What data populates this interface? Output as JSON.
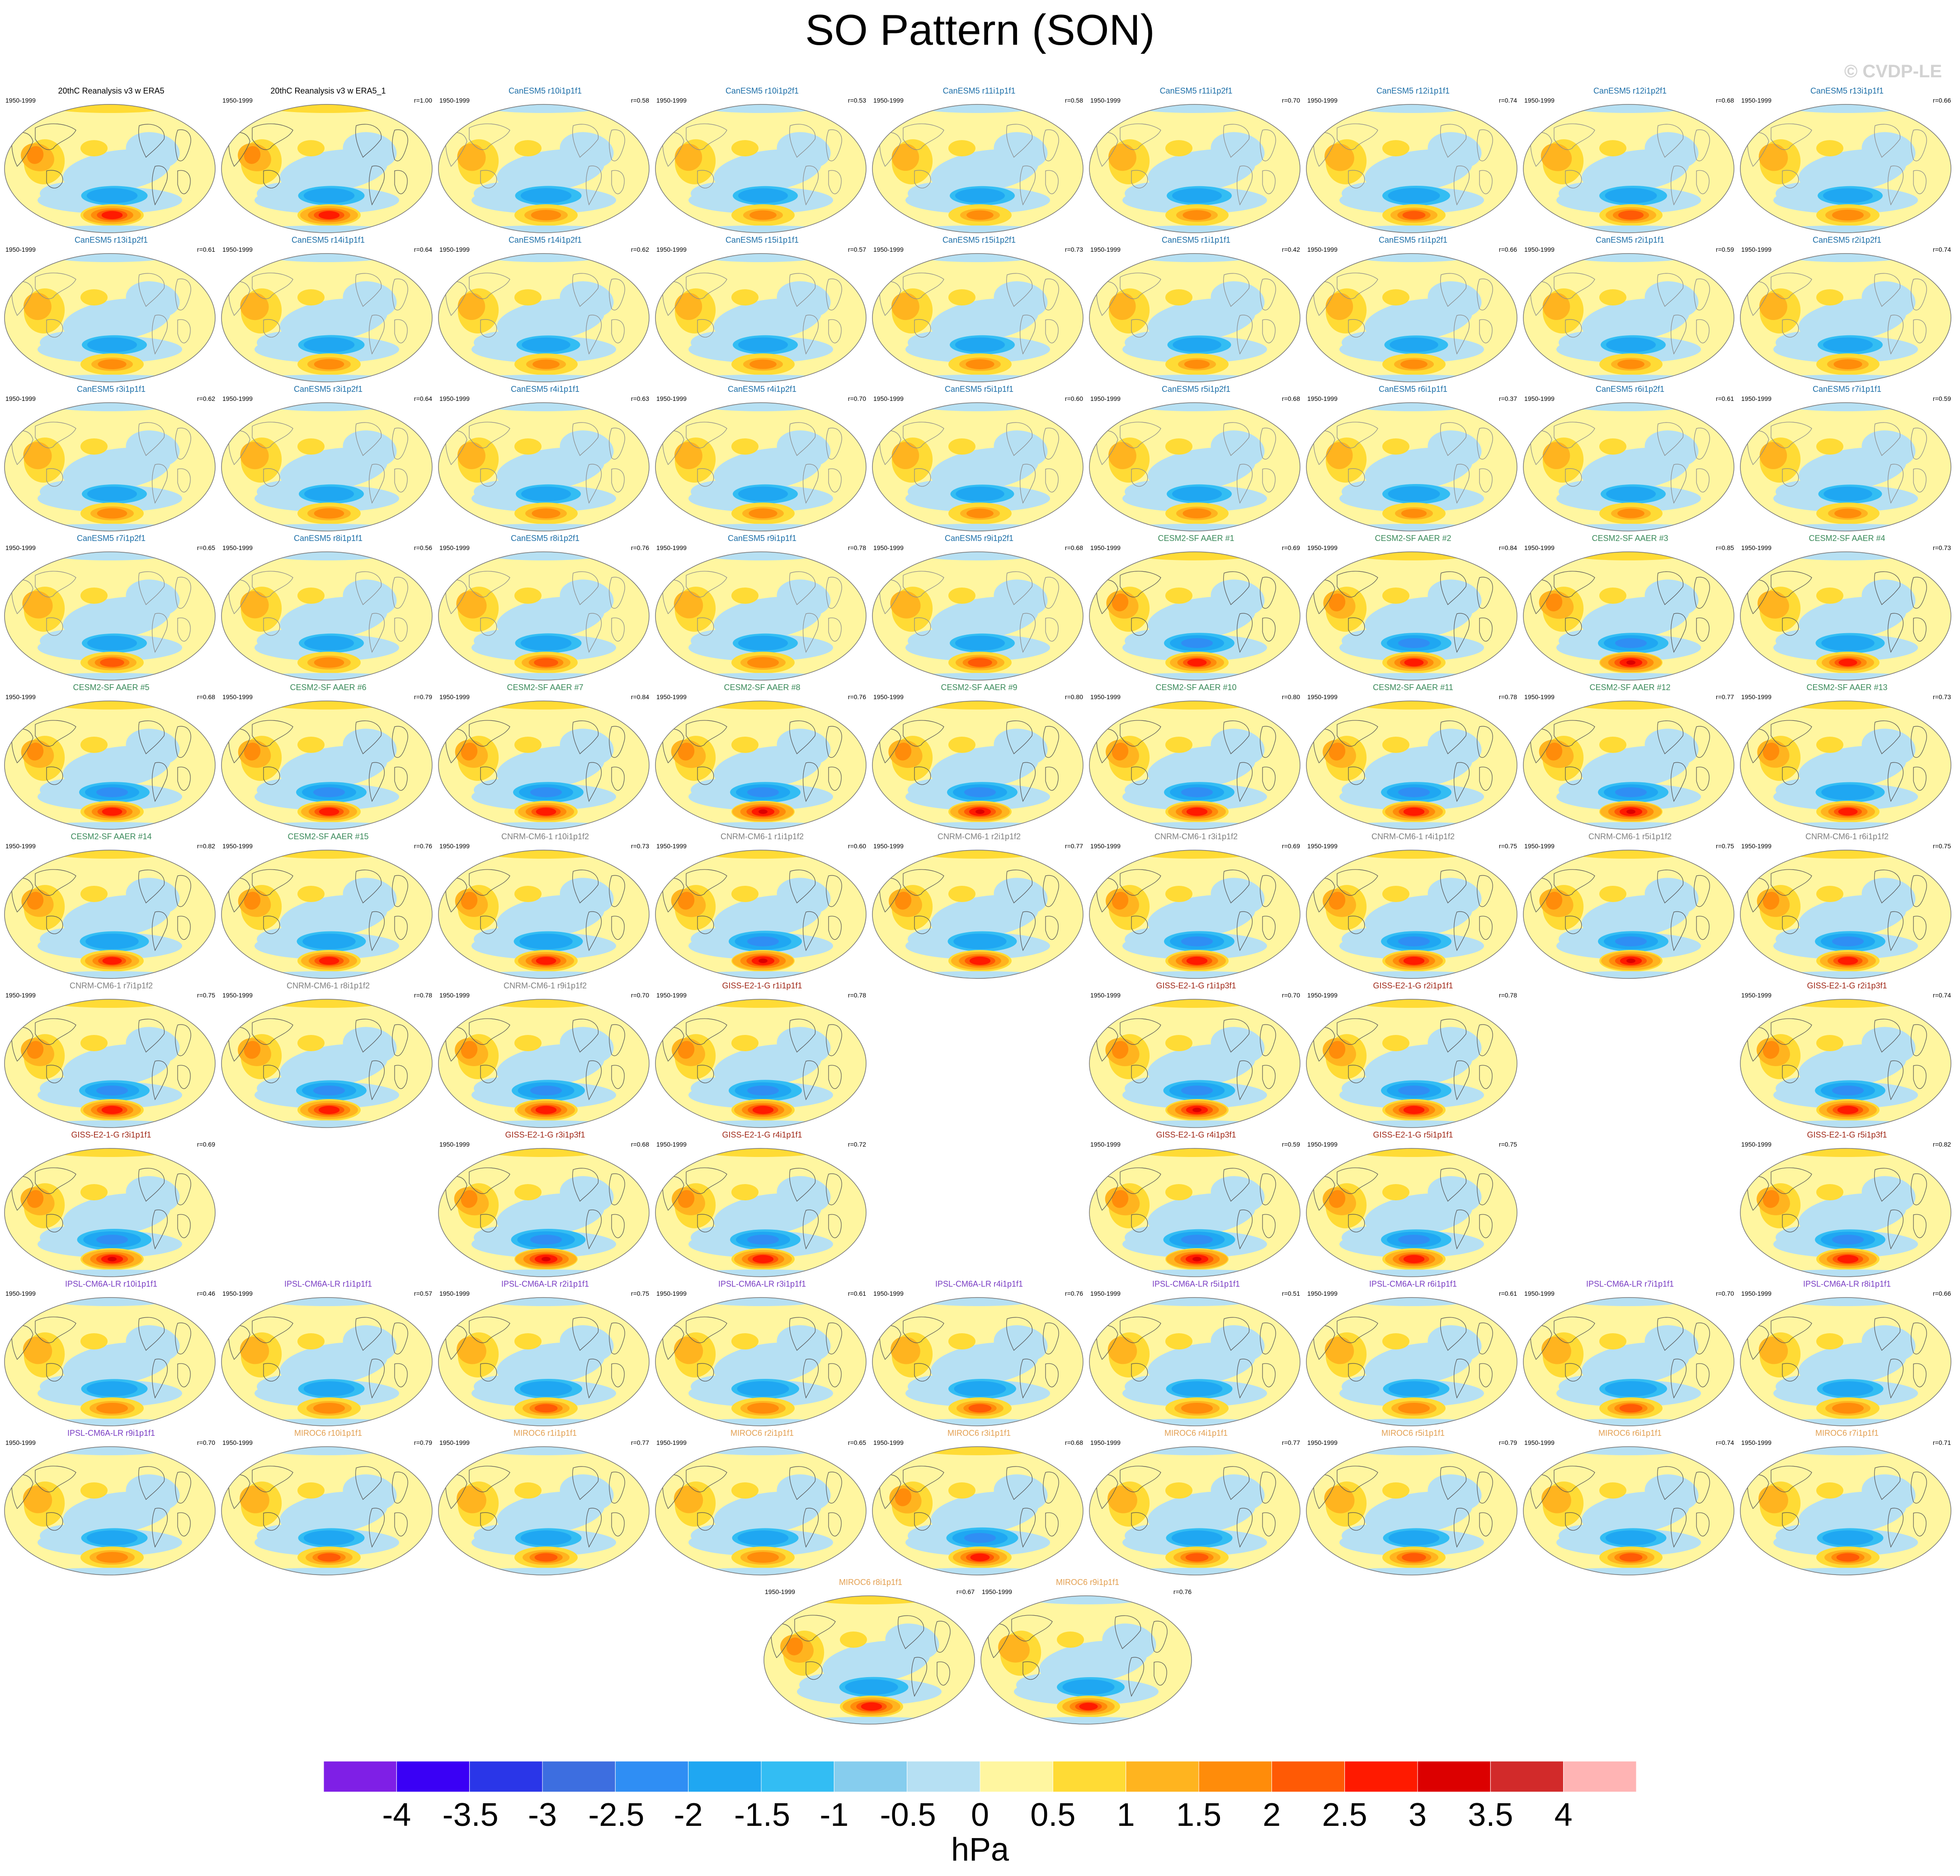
{
  "figure": {
    "title": "SO Pattern (SON)",
    "watermark": "© CVDP-LE",
    "units": "hPa"
  },
  "colors": {
    "canesm": "#1d6fa8",
    "cesm": "#3a8a5a",
    "cnrm": "#808080",
    "giss": "#a12a1a",
    "ipsl": "#7b3fc4",
    "miroc": "#e3a052",
    "obs": "#000000"
  },
  "colorbar": {
    "labels": [
      "-4",
      "-3.5",
      "-3",
      "-2.5",
      "-2",
      "-1.5",
      "-1",
      "-0.5",
      "0",
      "0.5",
      "1",
      "1.5",
      "2",
      "2.5",
      "3",
      "3.5",
      "4"
    ],
    "colors": [
      "#7f1fe6",
      "#3a00f5",
      "#2a36e8",
      "#3d6ee0",
      "#2f8ef4",
      "#1fa7f2",
      "#33bdf3",
      "#86cdee",
      "#b6e0f3",
      "#fff6a0",
      "#ffdb35",
      "#ffb41f",
      "#ff8c0a",
      "#ff5a05",
      "#ff1a00",
      "#dc0000",
      "#d22a2a",
      "#ffb4b4"
    ]
  },
  "panels": [
    {
      "row": 0,
      "col": 0,
      "title": "20thC Reanalysis v3 w ERA5",
      "period": "1950-1999",
      "r": "",
      "group": "obs",
      "pos": 0.85,
      "neg": 0.45,
      "cont": "dark"
    },
    {
      "row": 0,
      "col": 1,
      "title": "20thC Reanalysis v3 w ERA5_1",
      "period": "1950-1999",
      "r": "r=1.00",
      "group": "obs",
      "pos": 0.85,
      "neg": 0.45,
      "cont": "dark"
    },
    {
      "row": 0,
      "col": 2,
      "title": "CanESM5 r10i1p1f1",
      "period": "1950-1999",
      "r": "r=0.58",
      "group": "canesm",
      "pos": 0.45,
      "neg": 0.45,
      "cont": "light"
    },
    {
      "row": 0,
      "col": 3,
      "title": "CanESM5 r10i1p2f1",
      "period": "1950-1999",
      "r": "r=0.53",
      "group": "canesm",
      "pos": 0.35,
      "neg": 0.4,
      "cont": "light"
    },
    {
      "row": 0,
      "col": 4,
      "title": "CanESM5 r11i1p1f1",
      "period": "1950-1999",
      "r": "r=0.58",
      "group": "canesm",
      "pos": 0.35,
      "neg": 0.4,
      "cont": "light"
    },
    {
      "row": 0,
      "col": 5,
      "title": "CanESM5 r11i1p2f1",
      "period": "1950-1999",
      "r": "r=0.70",
      "group": "canesm",
      "pos": 0.4,
      "neg": 0.4,
      "cont": "light"
    },
    {
      "row": 0,
      "col": 6,
      "title": "CanESM5 r12i1p1f1",
      "period": "1950-1999",
      "r": "r=0.74",
      "group": "canesm",
      "pos": 0.55,
      "neg": 0.5,
      "cont": "light"
    },
    {
      "row": 0,
      "col": 7,
      "title": "CanESM5 r12i1p2f1",
      "period": "1950-1999",
      "r": "r=0.68",
      "group": "canesm",
      "pos": 0.65,
      "neg": 0.5,
      "cont": "light"
    },
    {
      "row": 0,
      "col": 8,
      "title": "CanESM5 r13i1p1f1",
      "period": "1950-1999",
      "r": "r=0.66",
      "group": "canesm",
      "pos": 0.5,
      "neg": 0.4,
      "cont": "light"
    },
    {
      "row": 1,
      "col": 0,
      "title": "CanESM5 r13i1p2f1",
      "period": "1950-1999",
      "r": "r=0.61",
      "group": "canesm",
      "pos": 0.4,
      "neg": 0.4,
      "cont": "light"
    },
    {
      "row": 1,
      "col": 1,
      "title": "CanESM5 r14i1p1f1",
      "period": "1950-1999",
      "r": "r=0.64",
      "group": "canesm",
      "pos": 0.45,
      "neg": 0.45,
      "cont": "light"
    },
    {
      "row": 1,
      "col": 2,
      "title": "CanESM5 r14i1p2f1",
      "period": "1950-1999",
      "r": "r=0.62",
      "group": "canesm",
      "pos": 0.35,
      "neg": 0.35,
      "cont": "light"
    },
    {
      "row": 1,
      "col": 3,
      "title": "CanESM5 r15i1p1f1",
      "period": "1950-1999",
      "r": "r=0.57",
      "group": "canesm",
      "pos": 0.35,
      "neg": 0.4,
      "cont": "light"
    },
    {
      "row": 1,
      "col": 4,
      "title": "CanESM5 r15i1p2f1",
      "period": "1950-1999",
      "r": "r=0.73",
      "group": "canesm",
      "pos": 0.4,
      "neg": 0.4,
      "cont": "light"
    },
    {
      "row": 1,
      "col": 5,
      "title": "CanESM5 r1i1p1f1",
      "period": "1950-1999",
      "r": "r=0.42",
      "group": "canesm",
      "pos": 0.3,
      "neg": 0.35,
      "cont": "light"
    },
    {
      "row": 1,
      "col": 6,
      "title": "CanESM5 r1i1p2f1",
      "period": "1950-1999",
      "r": "r=0.66",
      "group": "canesm",
      "pos": 0.35,
      "neg": 0.35,
      "cont": "light"
    },
    {
      "row": 1,
      "col": 7,
      "title": "CanESM5 r2i1p1f1",
      "period": "1950-1999",
      "r": "r=0.59",
      "group": "canesm",
      "pos": 0.35,
      "neg": 0.4,
      "cont": "light"
    },
    {
      "row": 1,
      "col": 8,
      "title": "CanESM5 r2i1p2f1",
      "period": "1950-1999",
      "r": "r=0.74",
      "group": "canesm",
      "pos": 0.4,
      "neg": 0.4,
      "cont": "light"
    },
    {
      "row": 2,
      "col": 0,
      "title": "CanESM5 r3i1p1f1",
      "period": "1950-1999",
      "r": "r=0.62",
      "group": "canesm",
      "pos": 0.45,
      "neg": 0.4,
      "cont": "light"
    },
    {
      "row": 2,
      "col": 1,
      "title": "CanESM5 r3i1p2f1",
      "period": "1950-1999",
      "r": "r=0.64",
      "group": "canesm",
      "pos": 0.45,
      "neg": 0.4,
      "cont": "light"
    },
    {
      "row": 2,
      "col": 2,
      "title": "CanESM5 r4i1p1f1",
      "period": "1950-1999",
      "r": "r=0.63",
      "group": "canesm",
      "pos": 0.4,
      "neg": 0.4,
      "cont": "light"
    },
    {
      "row": 2,
      "col": 3,
      "title": "CanESM5 r4i1p2f1",
      "period": "1950-1999",
      "r": "r=0.70",
      "group": "canesm",
      "pos": 0.4,
      "neg": 0.4,
      "cont": "light"
    },
    {
      "row": 2,
      "col": 4,
      "title": "CanESM5 r5i1p1f1",
      "period": "1950-1999",
      "r": "r=0.60",
      "group": "canesm",
      "pos": 0.35,
      "neg": 0.35,
      "cont": "light"
    },
    {
      "row": 2,
      "col": 5,
      "title": "CanESM5 r5i1p2f1",
      "period": "1950-1999",
      "r": "r=0.68",
      "group": "canesm",
      "pos": 0.4,
      "neg": 0.4,
      "cont": "light"
    },
    {
      "row": 2,
      "col": 6,
      "title": "CanESM5 r6i1p1f1",
      "period": "1950-1999",
      "r": "r=0.37",
      "group": "canesm",
      "pos": 0.3,
      "neg": 0.5,
      "cont": "light"
    },
    {
      "row": 2,
      "col": 7,
      "title": "CanESM5 r6i1p2f1",
      "period": "1950-1999",
      "r": "r=0.61",
      "group": "canesm",
      "pos": 0.35,
      "neg": 0.4,
      "cont": "light"
    },
    {
      "row": 2,
      "col": 8,
      "title": "CanESM5 r7i1p1f1",
      "period": "1950-1999",
      "r": "r=0.59",
      "group": "canesm",
      "pos": 0.35,
      "neg": 0.35,
      "cont": "light"
    },
    {
      "row": 3,
      "col": 0,
      "title": "CanESM5 r7i1p2f1",
      "period": "1950-1999",
      "r": "r=0.65",
      "group": "canesm",
      "pos": 0.6,
      "neg": 0.4,
      "cont": "light"
    },
    {
      "row": 3,
      "col": 1,
      "title": "CanESM5 r8i1p1f1",
      "period": "1950-1999",
      "r": "r=0.56",
      "group": "canesm",
      "pos": 0.45,
      "neg": 0.4,
      "cont": "light"
    },
    {
      "row": 3,
      "col": 2,
      "title": "CanESM5 r8i1p2f1",
      "period": "1950-1999",
      "r": "r=0.76",
      "group": "canesm",
      "pos": 0.6,
      "neg": 0.45,
      "cont": "light"
    },
    {
      "row": 3,
      "col": 3,
      "title": "CanESM5 r9i1p1f1",
      "period": "1950-1999",
      "r": "r=0.78",
      "group": "canesm",
      "pos": 0.5,
      "neg": 0.4,
      "cont": "light"
    },
    {
      "row": 3,
      "col": 4,
      "title": "CanESM5 r9i1p2f1",
      "period": "1950-1999",
      "r": "r=0.68",
      "group": "canesm",
      "pos": 0.6,
      "neg": 0.4,
      "cont": "light"
    },
    {
      "row": 3,
      "col": 5,
      "title": "CESM2-SF AAER #1",
      "period": "1950-1999",
      "r": "r=0.69",
      "group": "cesm",
      "pos": 0.75,
      "neg": 0.6,
      "cont": "dark"
    },
    {
      "row": 3,
      "col": 6,
      "title": "CESM2-SF AAER #2",
      "period": "1950-1999",
      "r": "r=0.84",
      "group": "cesm",
      "pos": 0.75,
      "neg": 0.6,
      "cont": "dark"
    },
    {
      "row": 3,
      "col": 7,
      "title": "CESM2-SF AAER #3",
      "period": "1950-1999",
      "r": "r=0.85",
      "group": "cesm",
      "pos": 0.95,
      "neg": 0.6,
      "cont": "dark"
    },
    {
      "row": 3,
      "col": 8,
      "title": "CESM2-SF AAER #4",
      "period": "1950-1999",
      "r": "r=0.73",
      "group": "cesm",
      "pos": 0.7,
      "neg": 0.55,
      "cont": "dark"
    },
    {
      "row": 4,
      "col": 0,
      "title": "CESM2-SF AAER #5",
      "period": "1950-1999",
      "r": "r=0.68",
      "group": "cesm",
      "pos": 0.8,
      "neg": 0.6,
      "cont": "dark"
    },
    {
      "row": 4,
      "col": 1,
      "title": "CESM2-SF AAER #6",
      "period": "1950-1999",
      "r": "r=0.79",
      "group": "cesm",
      "pos": 0.8,
      "neg": 0.6,
      "cont": "dark"
    },
    {
      "row": 4,
      "col": 2,
      "title": "CESM2-SF AAER #7",
      "period": "1950-1999",
      "r": "r=0.84",
      "group": "cesm",
      "pos": 0.8,
      "neg": 0.6,
      "cont": "dark"
    },
    {
      "row": 4,
      "col": 3,
      "title": "CESM2-SF AAER #8",
      "period": "1950-1999",
      "r": "r=0.76",
      "group": "cesm",
      "pos": 0.95,
      "neg": 0.6,
      "cont": "dark"
    },
    {
      "row": 4,
      "col": 4,
      "title": "CESM2-SF AAER #9",
      "period": "1950-1999",
      "r": "r=0.80",
      "group": "cesm",
      "pos": 0.9,
      "neg": 0.6,
      "cont": "dark"
    },
    {
      "row": 4,
      "col": 5,
      "title": "CESM2-SF AAER #10",
      "period": "1950-1999",
      "r": "r=0.80",
      "group": "cesm",
      "pos": 0.85,
      "neg": 0.6,
      "cont": "dark"
    },
    {
      "row": 4,
      "col": 6,
      "title": "CESM2-SF AAER #11",
      "period": "1950-1999",
      "r": "r=0.78",
      "group": "cesm",
      "pos": 0.85,
      "neg": 0.6,
      "cont": "dark"
    },
    {
      "row": 4,
      "col": 7,
      "title": "CESM2-SF AAER #12",
      "period": "1950-1999",
      "r": "r=0.77",
      "group": "cesm",
      "pos": 0.95,
      "neg": 0.6,
      "cont": "dark"
    },
    {
      "row": 4,
      "col": 8,
      "title": "CESM2-SF AAER #13",
      "period": "1950-1999",
      "r": "r=0.73",
      "group": "cesm",
      "pos": 0.75,
      "neg": 0.55,
      "cont": "dark"
    },
    {
      "row": 5,
      "col": 0,
      "title": "CESM2-SF AAER #14",
      "period": "1950-1999",
      "r": "r=0.82",
      "group": "cesm",
      "pos": 0.75,
      "neg": 0.55,
      "cont": "dark"
    },
    {
      "row": 5,
      "col": 1,
      "title": "CESM2-SF AAER #15",
      "period": "1950-1999",
      "r": "r=0.76",
      "group": "cesm",
      "pos": 0.8,
      "neg": 0.55,
      "cont": "dark"
    },
    {
      "row": 5,
      "col": 2,
      "title": "CNRM-CM6-1 r10i1p1f2",
      "period": "1950-1999",
      "r": "r=0.73",
      "group": "cnrm",
      "pos": 0.8,
      "neg": 0.55,
      "cont": "dark"
    },
    {
      "row": 5,
      "col": 3,
      "title": "CNRM-CM6-1 r1i1p1f2",
      "period": "1950-1999",
      "r": "r=0.60",
      "group": "cnrm",
      "pos": 0.95,
      "neg": 0.7,
      "cont": "dark"
    },
    {
      "row": 5,
      "col": 4,
      "title": "CNRM-CM6-1 r2i1p1f2",
      "period": "1950-1999",
      "r": "r=0.77",
      "group": "cnrm",
      "pos": 0.85,
      "neg": 0.55,
      "cont": "dark"
    },
    {
      "row": 5,
      "col": 5,
      "title": "CNRM-CM6-1 r3i1p1f2",
      "period": "1950-1999",
      "r": "r=0.69",
      "group": "cnrm",
      "pos": 0.85,
      "neg": 0.6,
      "cont": "dark"
    },
    {
      "row": 5,
      "col": 6,
      "title": "CNRM-CM6-1 r4i1p1f2",
      "period": "1950-1999",
      "r": "r=0.75",
      "group": "cnrm",
      "pos": 0.85,
      "neg": 0.6,
      "cont": "dark"
    },
    {
      "row": 5,
      "col": 7,
      "title": "CNRM-CM6-1 r5i1p1f2",
      "period": "1950-1999",
      "r": "r=0.75",
      "group": "cnrm",
      "pos": 0.9,
      "neg": 0.6,
      "cont": "dark"
    },
    {
      "row": 5,
      "col": 8,
      "title": "CNRM-CM6-1 r6i1p1f2",
      "period": "1950-1999",
      "r": "r=0.75",
      "group": "cnrm",
      "pos": 0.8,
      "neg": 0.6,
      "cont": "dark"
    },
    {
      "row": 6,
      "col": 0,
      "title": "CNRM-CM6-1 r7i1p1f2",
      "period": "1950-1999",
      "r": "r=0.75",
      "group": "cnrm",
      "pos": 0.85,
      "neg": 0.6,
      "cont": "dark"
    },
    {
      "row": 6,
      "col": 1,
      "title": "CNRM-CM6-1 r8i1p1f2",
      "period": "1950-1999",
      "r": "r=0.78",
      "group": "cnrm",
      "pos": 0.85,
      "neg": 0.6,
      "cont": "dark"
    },
    {
      "row": 6,
      "col": 2,
      "title": "CNRM-CM6-1 r9i1p1f2",
      "period": "1950-1999",
      "r": "r=0.70",
      "group": "cnrm",
      "pos": 0.85,
      "neg": 0.7,
      "cont": "dark"
    },
    {
      "row": 6,
      "col": 3,
      "title": "GISS-E2-1-G r1i1p1f1",
      "period": "1950-1999",
      "r": "r=0.78",
      "group": "giss",
      "pos": 0.85,
      "neg": 0.7,
      "cont": "dark"
    },
    {
      "row": 6,
      "col": 5,
      "title": "GISS-E2-1-G r1i1p3f1",
      "period": "1950-1999",
      "r": "r=0.70",
      "group": "giss",
      "pos": 0.9,
      "neg": 0.65,
      "cont": "dark"
    },
    {
      "row": 6,
      "col": 6,
      "title": "GISS-E2-1-G r2i1p1f1",
      "period": "1950-1999",
      "r": "r=0.78",
      "group": "giss",
      "pos": 0.85,
      "neg": 0.6,
      "cont": "dark"
    },
    {
      "row": 6,
      "col": 8,
      "title": "GISS-E2-1-G r2i1p3f1",
      "period": "1950-1999",
      "r": "r=0.74",
      "group": "giss",
      "pos": 0.85,
      "neg": 0.6,
      "cont": "dark"
    },
    {
      "row": 7,
      "col": 0,
      "title": "GISS-E2-1-G r3i1p1f1",
      "period": "",
      "r": "r=0.69",
      "group": "giss",
      "pos": 0.9,
      "neg": 0.75,
      "cont": "dark"
    },
    {
      "row": 7,
      "col": 2,
      "title": "GISS-E2-1-G r3i1p3f1",
      "period": "1950-1999",
      "r": "r=0.68",
      "group": "giss",
      "pos": 0.95,
      "neg": 0.75,
      "cont": "dark"
    },
    {
      "row": 7,
      "col": 3,
      "title": "GISS-E2-1-G r4i1p1f1",
      "period": "1950-1999",
      "r": "r=0.72",
      "group": "giss",
      "pos": 0.85,
      "neg": 0.6,
      "cont": "dark"
    },
    {
      "row": 7,
      "col": 5,
      "title": "GISS-E2-1-G r4i1p3f1",
      "period": "1950-1999",
      "r": "r=0.59",
      "group": "giss",
      "pos": 0.95,
      "neg": 0.65,
      "cont": "dark"
    },
    {
      "row": 7,
      "col": 6,
      "title": "GISS-E2-1-G r5i1p1f1",
      "period": "1950-1999",
      "r": "r=0.75",
      "group": "giss",
      "pos": 0.85,
      "neg": 0.6,
      "cont": "dark"
    },
    {
      "row": 7,
      "col": 8,
      "title": "GISS-E2-1-G r5i1p3f1",
      "period": "1950-1999",
      "r": "r=0.82",
      "group": "giss",
      "pos": 0.85,
      "neg": 0.6,
      "cont": "dark"
    },
    {
      "row": 8,
      "col": 0,
      "title": "IPSL-CM6A-LR r10i1p1f1",
      "period": "1950-1999",
      "r": "r=0.46",
      "group": "ipsl",
      "pos": 0.5,
      "neg": 0.45,
      "cont": "dark"
    },
    {
      "row": 8,
      "col": 1,
      "title": "IPSL-CM6A-LR r1i1p1f1",
      "period": "1950-1999",
      "r": "r=0.57",
      "group": "ipsl",
      "pos": 0.5,
      "neg": 0.45,
      "cont": "dark"
    },
    {
      "row": 8,
      "col": 2,
      "title": "IPSL-CM6A-LR r2i1p1f1",
      "period": "1950-1999",
      "r": "r=0.75",
      "group": "ipsl",
      "pos": 0.55,
      "neg": 0.5,
      "cont": "dark"
    },
    {
      "row": 8,
      "col": 3,
      "title": "IPSL-CM6A-LR r3i1p1f1",
      "period": "1950-1999",
      "r": "r=0.61",
      "group": "ipsl",
      "pos": 0.5,
      "neg": 0.5,
      "cont": "dark"
    },
    {
      "row": 8,
      "col": 4,
      "title": "IPSL-CM6A-LR r4i1p1f1",
      "period": "1950-1999",
      "r": "r=0.76",
      "group": "ipsl",
      "pos": 0.55,
      "neg": 0.5,
      "cont": "dark"
    },
    {
      "row": 8,
      "col": 5,
      "title": "IPSL-CM6A-LR r5i1p1f1",
      "period": "1950-1999",
      "r": "r=0.51",
      "group": "ipsl",
      "pos": 0.5,
      "neg": 0.45,
      "cont": "dark"
    },
    {
      "row": 8,
      "col": 6,
      "title": "IPSL-CM6A-LR r6i1p1f1",
      "period": "1950-1999",
      "r": "r=0.61",
      "group": "ipsl",
      "pos": 0.5,
      "neg": 0.45,
      "cont": "dark"
    },
    {
      "row": 8,
      "col": 7,
      "title": "IPSL-CM6A-LR r7i1p1f1",
      "period": "1950-1999",
      "r": "r=0.70",
      "group": "ipsl",
      "pos": 0.55,
      "neg": 0.5,
      "cont": "dark"
    },
    {
      "row": 8,
      "col": 8,
      "title": "IPSL-CM6A-LR r8i1p1f1",
      "period": "1950-1999",
      "r": "r=0.66",
      "group": "ipsl",
      "pos": 0.5,
      "neg": 0.45,
      "cont": "dark"
    },
    {
      "row": 9,
      "col": 0,
      "title": "IPSL-CM6A-LR r9i1p1f1",
      "period": "1950-1999",
      "r": "r=0.70",
      "group": "ipsl",
      "pos": 0.5,
      "neg": 0.45,
      "cont": "dark"
    },
    {
      "row": 9,
      "col": 1,
      "title": "MIROC6 r10i1p1f1",
      "period": "1950-1999",
      "r": "r=0.79",
      "group": "miroc",
      "pos": 0.55,
      "neg": 0.45,
      "cont": "dark"
    },
    {
      "row": 9,
      "col": 2,
      "title": "MIROC6 r1i1p1f1",
      "period": "1950-1999",
      "r": "r=0.77",
      "group": "miroc",
      "pos": 0.55,
      "neg": 0.45,
      "cont": "dark"
    },
    {
      "row": 9,
      "col": 3,
      "title": "MIROC6 r2i1p1f1",
      "period": "1950-1999",
      "r": "r=0.65",
      "group": "miroc",
      "pos": 0.5,
      "neg": 0.45,
      "cont": "dark"
    },
    {
      "row": 9,
      "col": 4,
      "title": "MIROC6 r3i1p1f1",
      "period": "1950-1999",
      "r": "r=0.68",
      "group": "miroc",
      "pos": 0.75,
      "neg": 0.65,
      "cont": "dark"
    },
    {
      "row": 9,
      "col": 5,
      "title": "MIROC6 r4i1p1f1",
      "period": "1950-1999",
      "r": "r=0.77",
      "group": "miroc",
      "pos": 0.55,
      "neg": 0.45,
      "cont": "dark"
    },
    {
      "row": 9,
      "col": 6,
      "title": "MIROC6 r5i1p1f1",
      "period": "1950-1999",
      "r": "r=0.79",
      "group": "miroc",
      "pos": 0.6,
      "neg": 0.45,
      "cont": "dark"
    },
    {
      "row": 9,
      "col": 7,
      "title": "MIROC6 r6i1p1f1",
      "period": "1950-1999",
      "r": "r=0.74",
      "group": "miroc",
      "pos": 0.55,
      "neg": 0.45,
      "cont": "dark"
    },
    {
      "row": 9,
      "col": 8,
      "title": "MIROC6 r7i1p1f1",
      "period": "1950-1999",
      "r": "r=0.71",
      "group": "miroc",
      "pos": 0.55,
      "neg": 0.45,
      "cont": "dark"
    },
    {
      "row": 10,
      "col": 3.5,
      "title": "MIROC6 r8i1p1f1",
      "period": "1950-1999",
      "r": "r=0.67",
      "group": "miroc",
      "pos": 0.85,
      "neg": 0.55,
      "cont": "dark"
    },
    {
      "row": 10,
      "col": 4.5,
      "title": "MIROC6 r9i1p1f1",
      "period": "1950-1999",
      "r": "r=0.76",
      "group": "miroc",
      "pos": 0.7,
      "neg": 0.5,
      "cont": "dark"
    }
  ]
}
